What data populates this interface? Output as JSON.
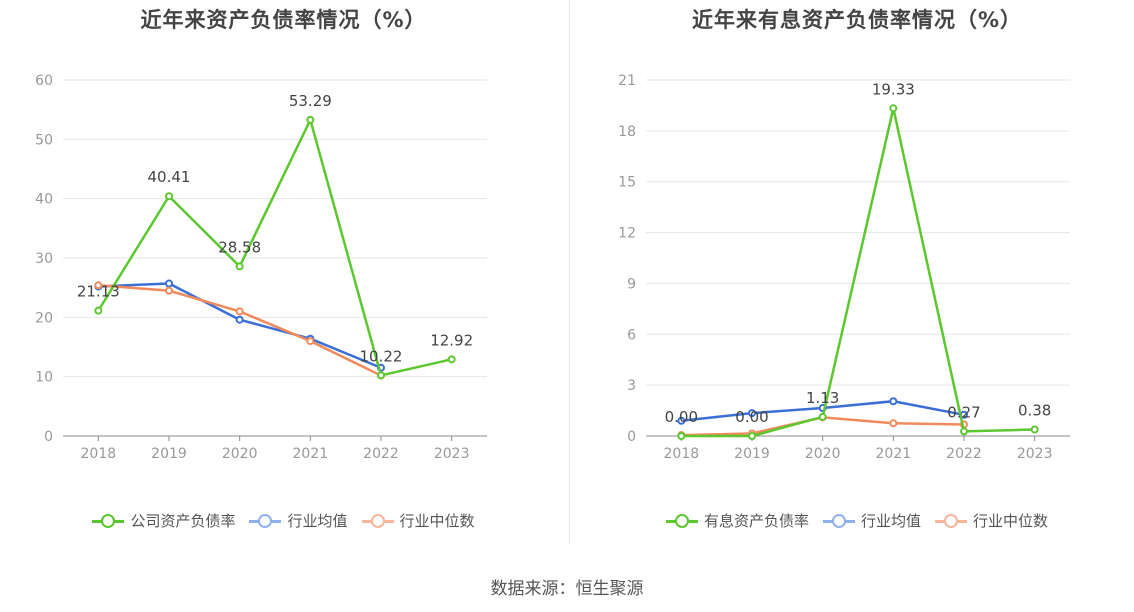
{
  "source_label": "数据来源：恒生聚源",
  "chart_data": [
    {
      "type": "line",
      "title": "近年来资产负债率情况（%）",
      "categories": [
        "2018",
        "2019",
        "2020",
        "2021",
        "2022",
        "2023"
      ],
      "ylim": [
        0,
        60
      ],
      "yticks": [
        0,
        10,
        20,
        30,
        40,
        50,
        60
      ],
      "grid": true,
      "legend_position": "bottom",
      "series": [
        {
          "name": "公司资产负债率",
          "color": "#5cc72f",
          "values": [
            21.13,
            40.41,
            28.58,
            53.29,
            10.22,
            12.92
          ],
          "labels": [
            "21.13",
            "40.41",
            "28.58",
            "53.29",
            "10.22",
            "12.92"
          ]
        },
        {
          "name": "行业均值",
          "color": "#3b6fd6",
          "values": [
            25.2,
            25.7,
            19.6,
            16.4,
            11.5,
            null
          ]
        },
        {
          "name": "行业中位数",
          "color": "#f08a5a",
          "values": [
            25.4,
            24.5,
            21.0,
            16.0,
            10.2,
            null
          ]
        }
      ]
    },
    {
      "type": "line",
      "title": "近年来有息资产负债率情况（%）",
      "categories": [
        "2018",
        "2019",
        "2020",
        "2021",
        "2022",
        "2023"
      ],
      "ylim": [
        0,
        21
      ],
      "yticks": [
        0,
        3,
        6,
        9,
        12,
        15,
        18,
        21
      ],
      "grid": true,
      "legend_position": "bottom",
      "series": [
        {
          "name": "有息资产负债率",
          "color": "#5cc72f",
          "values": [
            0.0,
            0.0,
            1.13,
            19.33,
            0.27,
            0.38
          ],
          "labels": [
            "0.00",
            "0.00",
            "1.13",
            "19.33",
            "0.27",
            "0.38"
          ]
        },
        {
          "name": "行业均值",
          "color": "#3b6fd6",
          "values": [
            0.9,
            1.35,
            1.65,
            2.05,
            1.25,
            null
          ]
        },
        {
          "name": "行业中位数",
          "color": "#f08a5a",
          "values": [
            0.05,
            0.15,
            1.1,
            0.75,
            0.68,
            null
          ]
        }
      ]
    }
  ]
}
